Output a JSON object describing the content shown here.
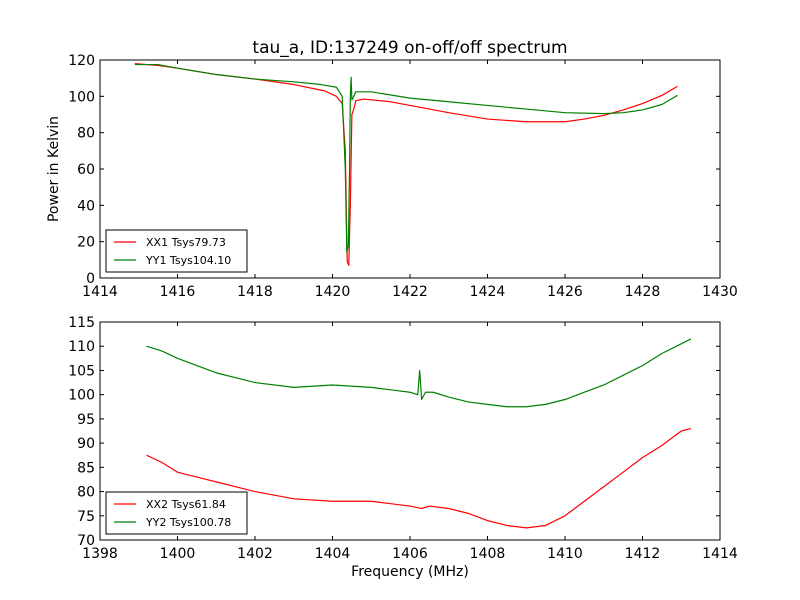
{
  "chart_data": [
    {
      "type": "line",
      "title": "tau_a, ID:137249 on-off/off spectrum",
      "xlabel": "",
      "ylabel": "Power in Kelvin",
      "xlim": [
        1414,
        1430
      ],
      "ylim": [
        0,
        120
      ],
      "xticks": [
        1414,
        1416,
        1418,
        1420,
        1422,
        1424,
        1426,
        1428,
        1430
      ],
      "yticks": [
        0,
        20,
        40,
        60,
        80,
        100,
        120
      ],
      "legend_position": "lower-left",
      "series": [
        {
          "name": "XX1 Tsys79.73",
          "color": "#ff0000",
          "points": [
            [
              1414.9,
              118
            ],
            [
              1415.5,
              117
            ],
            [
              1416,
              115.5
            ],
            [
              1417,
              112
            ],
            [
              1418,
              109.5
            ],
            [
              1419,
              106.5
            ],
            [
              1419.8,
              103
            ],
            [
              1420.1,
              100
            ],
            [
              1420.25,
              96
            ],
            [
              1420.33,
              70
            ],
            [
              1420.38,
              9
            ],
            [
              1420.42,
              7
            ],
            [
              1420.46,
              40
            ],
            [
              1420.5,
              90
            ],
            [
              1420.55,
              93
            ],
            [
              1420.6,
              97.5
            ],
            [
              1420.8,
              98.5
            ],
            [
              1421.5,
              97
            ],
            [
              1422,
              95
            ],
            [
              1423,
              91
            ],
            [
              1424,
              87.5
            ],
            [
              1425,
              86
            ],
            [
              1426,
              86
            ],
            [
              1426.5,
              87.5
            ],
            [
              1427,
              89.5
            ],
            [
              1427.5,
              92.5
            ],
            [
              1428,
              96
            ],
            [
              1428.5,
              100.5
            ],
            [
              1428.9,
              105.5
            ]
          ]
        },
        {
          "name": "YY1 Tsys104.10",
          "color": "#008000",
          "points": [
            [
              1414.9,
              117.5
            ],
            [
              1415.5,
              117.5
            ],
            [
              1416,
              115.5
            ],
            [
              1417,
              112
            ],
            [
              1418,
              109.5
            ],
            [
              1419,
              108
            ],
            [
              1419.7,
              106.5
            ],
            [
              1420.1,
              105
            ],
            [
              1420.25,
              100
            ],
            [
              1420.33,
              60
            ],
            [
              1420.37,
              14
            ],
            [
              1420.41,
              18
            ],
            [
              1420.44,
              60
            ],
            [
              1420.46,
              100
            ],
            [
              1420.48,
              110.5
            ],
            [
              1420.5,
              98
            ],
            [
              1420.55,
              100
            ],
            [
              1420.6,
              102.5
            ],
            [
              1421,
              102.5
            ],
            [
              1422,
              99
            ],
            [
              1423,
              97
            ],
            [
              1424,
              95
            ],
            [
              1425,
              93
            ],
            [
              1426,
              91
            ],
            [
              1427,
              90.5
            ],
            [
              1427.5,
              91
            ],
            [
              1428,
              92.5
            ],
            [
              1428.5,
              95.5
            ],
            [
              1428.9,
              100.5
            ]
          ]
        }
      ]
    },
    {
      "type": "line",
      "title": "",
      "xlabel": "Frequency (MHz)",
      "ylabel": "",
      "xlim": [
        1398,
        1414
      ],
      "ylim": [
        70,
        115
      ],
      "xticks": [
        1398,
        1400,
        1402,
        1404,
        1406,
        1408,
        1410,
        1412,
        1414
      ],
      "yticks": [
        70,
        75,
        80,
        85,
        90,
        95,
        100,
        105,
        110,
        115
      ],
      "legend_position": "lower-left",
      "series": [
        {
          "name": "XX2 Tsys61.84",
          "color": "#ff0000",
          "points": [
            [
              1399.2,
              87.5
            ],
            [
              1399.6,
              86
            ],
            [
              1399.9,
              84.5
            ],
            [
              1400,
              84
            ],
            [
              1400.5,
              83
            ],
            [
              1401,
              82
            ],
            [
              1402,
              80
            ],
            [
              1403,
              78.5
            ],
            [
              1404,
              78
            ],
            [
              1405,
              78
            ],
            [
              1405.5,
              77.5
            ],
            [
              1406,
              77
            ],
            [
              1406.3,
              76.5
            ],
            [
              1406.5,
              77
            ],
            [
              1407,
              76.5
            ],
            [
              1407.5,
              75.5
            ],
            [
              1408,
              74
            ],
            [
              1408.5,
              73
            ],
            [
              1409,
              72.5
            ],
            [
              1409.5,
              73
            ],
            [
              1410,
              75
            ],
            [
              1410.5,
              78
            ],
            [
              1411,
              81
            ],
            [
              1411.5,
              84
            ],
            [
              1412,
              87
            ],
            [
              1412.5,
              89.5
            ],
            [
              1413,
              92.5
            ],
            [
              1413.25,
              93
            ]
          ]
        },
        {
          "name": "YY2 Tsys100.78",
          "color": "#008000",
          "points": [
            [
              1399.2,
              110
            ],
            [
              1399.6,
              109
            ],
            [
              1400,
              107.5
            ],
            [
              1400.5,
              106
            ],
            [
              1401,
              104.5
            ],
            [
              1401.5,
              103.5
            ],
            [
              1402,
              102.5
            ],
            [
              1403,
              101.5
            ],
            [
              1404,
              102
            ],
            [
              1405,
              101.5
            ],
            [
              1405.5,
              101
            ],
            [
              1406,
              100.5
            ],
            [
              1406.2,
              100
            ],
            [
              1406.25,
              105
            ],
            [
              1406.3,
              99
            ],
            [
              1406.4,
              100.5
            ],
            [
              1406.6,
              100.5
            ],
            [
              1407,
              99.5
            ],
            [
              1407.5,
              98.5
            ],
            [
              1408,
              98
            ],
            [
              1408.5,
              97.5
            ],
            [
              1409,
              97.5
            ],
            [
              1409.5,
              98
            ],
            [
              1410,
              99
            ],
            [
              1410.5,
              100.5
            ],
            [
              1411,
              102
            ],
            [
              1411.5,
              104
            ],
            [
              1412,
              106
            ],
            [
              1412.5,
              108.5
            ],
            [
              1413,
              110.5
            ],
            [
              1413.25,
              111.5
            ]
          ]
        }
      ]
    }
  ]
}
